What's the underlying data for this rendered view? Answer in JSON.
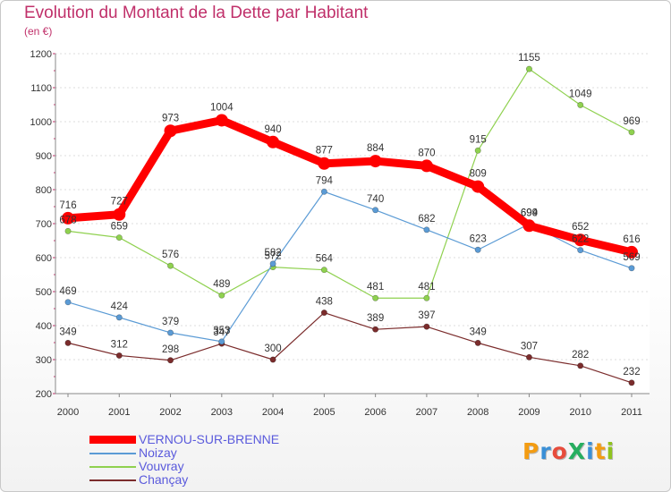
{
  "header": {
    "title": "Evolution du Montant de la Dette par Habitant",
    "unit": "(en €)"
  },
  "logo": {
    "text": "ProXiti",
    "letters": [
      {
        "ch": "P",
        "color": "#f39c12"
      },
      {
        "ch": "r",
        "color": "#3a8fd6"
      },
      {
        "ch": "o",
        "color": "#e74c3c"
      },
      {
        "ch": "X",
        "color": "#27ae60"
      },
      {
        "ch": "i",
        "color": "#3a8fd6"
      },
      {
        "ch": "t",
        "color": "#f39c12"
      },
      {
        "ch": "i",
        "color": "#8fc31f"
      }
    ]
  },
  "chart_data": {
    "type": "line",
    "x": [
      "2000",
      "2001",
      "2002",
      "2003",
      "2004",
      "2005",
      "2006",
      "2007",
      "2008",
      "2009",
      "2010",
      "2011"
    ],
    "ylim": [
      200,
      1200
    ],
    "yticks": [
      "200",
      "300",
      "400",
      "500",
      "600",
      "700",
      "800",
      "900",
      "1000",
      "1100",
      "1200"
    ],
    "grid": "horizontal",
    "legend_position": "bottom-left",
    "series": [
      {
        "name": "VERNOU-SUR-BRENNE",
        "color": "#ff0000",
        "values": [
          716,
          727,
          973,
          1004,
          940,
          877,
          884,
          870,
          809,
          694,
          652,
          616
        ],
        "labels": [
          "716",
          "727",
          "973",
          "1004",
          "940",
          "877",
          "884",
          "870",
          "809",
          "694",
          "652",
          "616"
        ]
      },
      {
        "name": "Noizay",
        "color": "#5b9bd5",
        "values": [
          469,
          424,
          379,
          353,
          582,
          794,
          740,
          682,
          623,
          699,
          622,
          569
        ],
        "labels": [
          "469",
          "424",
          "379",
          "353",
          "582",
          "794",
          "740",
          "682",
          "623",
          "699",
          "622",
          "569"
        ]
      },
      {
        "name": "Vouvray",
        "color": "#8fd14f",
        "values": [
          678,
          659,
          576,
          489,
          572,
          564,
          481,
          481,
          915,
          1155,
          1049,
          969
        ],
        "labels": [
          "678",
          "659",
          "576",
          "489",
          "572",
          "564",
          "481",
          "481",
          "915",
          "1155",
          "1049",
          "969"
        ]
      },
      {
        "name": "Chançay",
        "color": "#7b2c2c",
        "values": [
          349,
          312,
          298,
          347,
          300,
          438,
          389,
          397,
          349,
          307,
          282,
          232
        ],
        "labels": [
          "349",
          "312",
          "298",
          "347",
          "300",
          "438",
          "389",
          "397",
          "349",
          "307",
          "282",
          "232"
        ]
      }
    ]
  }
}
